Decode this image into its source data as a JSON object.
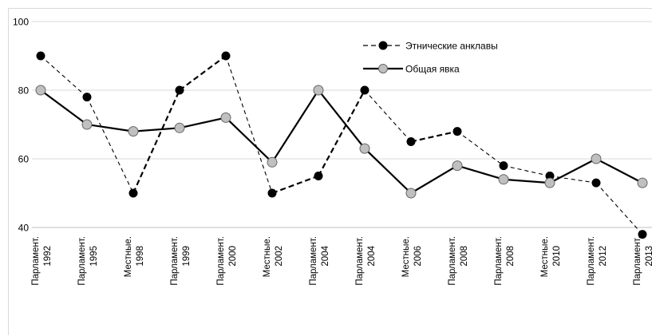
{
  "chart_data": {
    "type": "line",
    "categories": [
      [
        "Парламент.",
        "1992"
      ],
      [
        "Парламент.",
        "1995"
      ],
      [
        "Местные.",
        "1998"
      ],
      [
        "Парламент.",
        "1999"
      ],
      [
        "Парламент.",
        "2000"
      ],
      [
        "Местные.",
        "2002"
      ],
      [
        "Парламент.",
        "2004"
      ],
      [
        "Парламент.",
        "2004"
      ],
      [
        "Местные.",
        "2006"
      ],
      [
        "Парламент.",
        "2008"
      ],
      [
        "Парламент.",
        "2008"
      ],
      [
        "Местные.",
        "2010"
      ],
      [
        "Парламент.",
        "2012"
      ],
      [
        "Парламент.",
        "2013"
      ]
    ],
    "series": [
      {
        "name": "Этнические анклавы",
        "values": [
          90,
          78,
          50,
          80,
          90,
          50,
          55,
          80,
          65,
          68,
          58,
          55,
          53,
          38
        ],
        "style": "dashed",
        "marker_color": "#000000"
      },
      {
        "name": "Общая явка",
        "values": [
          80,
          70,
          68,
          69,
          72,
          59,
          80,
          63,
          50,
          58,
          54,
          53,
          60,
          53
        ],
        "style": "solid",
        "marker_color": "#c0c0c0"
      }
    ],
    "ylim": [
      40,
      100
    ],
    "yticks": [
      40,
      60,
      80,
      100
    ],
    "grid": true,
    "legend_position": "top-right"
  }
}
